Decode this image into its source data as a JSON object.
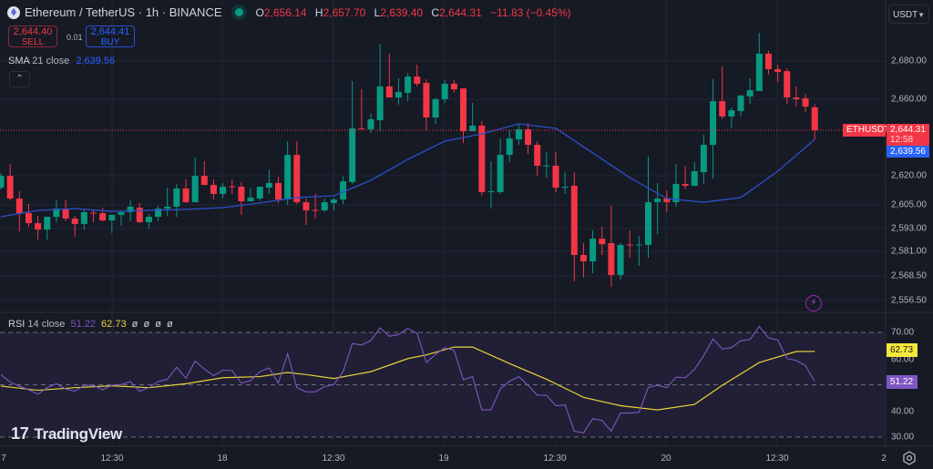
{
  "header": {
    "symbol": "Ethereum / TetherUS · 1h · BINANCE",
    "ohlc": {
      "o_label": "O",
      "o": "2,656.14",
      "h_label": "H",
      "h": "2,657.70",
      "l_label": "L",
      "l": "2,639.40",
      "c_label": "C",
      "c": "2,644.31",
      "change": "−11.83 (−0.45%)"
    }
  },
  "trade": {
    "sell_price": "2,644.40",
    "sell_label": "SELL",
    "spread": "0.01",
    "buy_price": "2,644.41",
    "buy_label": "BUY"
  },
  "sma_legend": {
    "name": "SMA",
    "params": "21 close",
    "value": "2,639.56"
  },
  "collapse_icon": "chevron-up-icon",
  "currency_select": "USDT",
  "price_axis": [
    "2,680.00",
    "2,660.00",
    "2,620.00",
    "2,605.00",
    "2,593.00",
    "2,581.00",
    "2,568.50",
    "2,556.50"
  ],
  "price_tags": {
    "symbol": "ETHUSDT",
    "last": "2,644.31",
    "countdown": "12:58",
    "sma": "2,639.56"
  },
  "rsi_legend": {
    "name": "RSI",
    "params": "14 close",
    "rsi": "51.22",
    "ma": "62.73",
    "extras": [
      "ø",
      "ø",
      "ø",
      "ø"
    ]
  },
  "rsi_axis": [
    "70.00",
    "60.00",
    "40.00",
    "30.00"
  ],
  "rsi_tags": {
    "ma": "62.73",
    "rsi": "51.22"
  },
  "time_axis": [
    "7",
    "12:30",
    "18",
    "12:30",
    "19",
    "12:30",
    "20",
    "12:30",
    "2"
  ],
  "brand": "TradingView",
  "colors": {
    "up": "#089981",
    "down": "#f23645",
    "sma": "#2e4fc8",
    "rsi": "#7e57c2",
    "rsi_ma": "#e8d23b",
    "bg": "#161a25"
  },
  "chart_data": {
    "type": "candlestick",
    "symbol": "ETHUSDT",
    "interval": "1h",
    "ohlc_fields": [
      "open",
      "high",
      "low",
      "close"
    ],
    "candles": [
      [
        2614.7,
        2622.2,
        2613.8,
        2620.8
      ],
      [
        2620.8,
        2626.9,
        2608.2,
        2609.1
      ],
      [
        2609.1,
        2612.9,
        2592.2,
        2601.6
      ],
      [
        2601.6,
        2606.3,
        2594.6,
        2596.4
      ],
      [
        2596.4,
        2600.2,
        2588.0,
        2593.1
      ],
      [
        2593.1,
        2599.7,
        2588.0,
        2599.7
      ],
      [
        2599.7,
        2608.6,
        2596.9,
        2603.9
      ],
      [
        2603.9,
        2608.6,
        2597.4,
        2598.8
      ],
      [
        2598.8,
        2600.2,
        2589.4,
        2596.0
      ],
      [
        2596.0,
        2603.5,
        2593.1,
        2602.1
      ],
      [
        2601.8,
        2603.0,
        2596.9,
        2601.4
      ],
      [
        2601.6,
        2604.4,
        2597.4,
        2597.8
      ],
      [
        2597.8,
        2600.7,
        2591.3,
        2600.7
      ],
      [
        2600.7,
        2602.5,
        2595.0,
        2602.1
      ],
      [
        2602.1,
        2608.2,
        2597.4,
        2604.9
      ],
      [
        2604.4,
        2606.8,
        2596.4,
        2596.9
      ],
      [
        2596.9,
        2601.1,
        2593.6,
        2599.7
      ],
      [
        2599.7,
        2605.3,
        2597.4,
        2603.9
      ],
      [
        2603.9,
        2614.7,
        2600.2,
        2604.9
      ],
      [
        2604.9,
        2616.6,
        2599.7,
        2614.3
      ],
      [
        2614.3,
        2619.0,
        2606.8,
        2607.2
      ],
      [
        2607.2,
        2630.2,
        2607.2,
        2620.8
      ],
      [
        2620.8,
        2628.4,
        2616.1,
        2616.1
      ],
      [
        2616.1,
        2619.0,
        2608.6,
        2611.5
      ],
      [
        2611.5,
        2617.1,
        2609.1,
        2615.2
      ],
      [
        2615.4,
        2619.0,
        2611.5,
        2615.0
      ],
      [
        2615.2,
        2617.6,
        2600.7,
        2607.7
      ],
      [
        2607.7,
        2614.7,
        2607.7,
        2609.6
      ],
      [
        2609.1,
        2615.2,
        2608.0,
        2615.2
      ],
      [
        2614.7,
        2624.1,
        2611.5,
        2617.1
      ],
      [
        2617.1,
        2620.4,
        2606.8,
        2608.6
      ],
      [
        2608.6,
        2638.7,
        2605.8,
        2631.6
      ],
      [
        2631.6,
        2638.7,
        2606.3,
        2607.2
      ],
      [
        2607.2,
        2609.1,
        2595.5,
        2603.0
      ],
      [
        2603.2,
        2611.5,
        2598.8,
        2603.0
      ],
      [
        2603.0,
        2609.1,
        2602.1,
        2607.2
      ],
      [
        2606.8,
        2609.6,
        2603.0,
        2608.6
      ],
      [
        2608.6,
        2620.4,
        2606.3,
        2618.0
      ],
      [
        2617.6,
        2669.7,
        2616.6,
        2645.3
      ],
      [
        2645.3,
        2665.4,
        2644.8,
        2644.8
      ],
      [
        2644.8,
        2652.8,
        2642.9,
        2650.0
      ],
      [
        2649.5,
        2688.9,
        2643.8,
        2666.9
      ],
      [
        2666.9,
        2683.8,
        2661.2,
        2661.2
      ],
      [
        2661.2,
        2671.1,
        2657.5,
        2664.0
      ],
      [
        2663.6,
        2673.9,
        2659.3,
        2672.0
      ],
      [
        2672.0,
        2678.1,
        2666.9,
        2668.3
      ],
      [
        2668.7,
        2670.6,
        2644.3,
        2650.9
      ],
      [
        2650.9,
        2661.2,
        2647.6,
        2660.3
      ],
      [
        2660.3,
        2670.1,
        2658.4,
        2668.3
      ],
      [
        2668.3,
        2670.1,
        2663.6,
        2665.4
      ],
      [
        2665.9,
        2665.9,
        2637.7,
        2643.8
      ],
      [
        2643.8,
        2658.4,
        2643.8,
        2646.7
      ],
      [
        2646.7,
        2649.0,
        2610.5,
        2612.4
      ],
      [
        2612.4,
        2628.4,
        2603.9,
        2612.9
      ],
      [
        2612.4,
        2640.1,
        2611.5,
        2631.6
      ],
      [
        2631.6,
        2644.3,
        2627.9,
        2640.1
      ],
      [
        2639.6,
        2647.6,
        2636.8,
        2644.8
      ],
      [
        2644.8,
        2648.1,
        2632.1,
        2636.8
      ],
      [
        2636.8,
        2638.7,
        2620.8,
        2626.0
      ],
      [
        2625.8,
        2633.0,
        2619.9,
        2626.2
      ],
      [
        2626.0,
        2633.0,
        2612.4,
        2614.7
      ],
      [
        2614.7,
        2622.7,
        2611.5,
        2615.2
      ],
      [
        2615.7,
        2622.7,
        2566.4,
        2580.0
      ],
      [
        2580.0,
        2586.1,
        2568.3,
        2576.7
      ],
      [
        2576.7,
        2592.7,
        2570.6,
        2588.4
      ],
      [
        2588.4,
        2594.6,
        2580.0,
        2585.6
      ],
      [
        2586.1,
        2605.3,
        2563.6,
        2569.7
      ],
      [
        2569.7,
        2586.1,
        2567.3,
        2585.2
      ],
      [
        2585.4,
        2592.7,
        2578.6,
        2585.0
      ],
      [
        2585.0,
        2589.9,
        2574.4,
        2585.4
      ],
      [
        2585.2,
        2630.7,
        2578.6,
        2607.2
      ],
      [
        2607.2,
        2617.1,
        2590.8,
        2609.1
      ],
      [
        2609.1,
        2613.3,
        2602.1,
        2607.2
      ],
      [
        2607.2,
        2626.9,
        2604.9,
        2616.6
      ],
      [
        2616.6,
        2626.0,
        2613.8,
        2615.7
      ],
      [
        2615.7,
        2627.9,
        2615.7,
        2623.2
      ],
      [
        2622.7,
        2642.0,
        2616.6,
        2636.8
      ],
      [
        2636.8,
        2670.6,
        2619.4,
        2659.3
      ],
      [
        2659.3,
        2677.2,
        2650.0,
        2651.4
      ],
      [
        2651.4,
        2656.1,
        2645.3,
        2654.6
      ],
      [
        2654.2,
        2662.6,
        2651.4,
        2662.2
      ],
      [
        2661.7,
        2671.1,
        2657.9,
        2665.0
      ],
      [
        2664.5,
        2694.6,
        2664.5,
        2683.8
      ],
      [
        2683.8,
        2685.2,
        2673.0,
        2675.8
      ],
      [
        2675.8,
        2678.1,
        2669.2,
        2674.4
      ],
      [
        2674.8,
        2676.2,
        2657.9,
        2661.2
      ],
      [
        2661.2,
        2666.9,
        2656.5,
        2660.3
      ],
      [
        2660.8,
        2663.1,
        2653.7,
        2656.5
      ],
      [
        2656.14,
        2657.7,
        2639.4,
        2644.31
      ]
    ],
    "sma21": [
      [
        0,
        2599.7
      ],
      [
        4,
        2603.0
      ],
      [
        8,
        2603.9
      ],
      [
        12,
        2602.5
      ],
      [
        16,
        2603.0
      ],
      [
        20,
        2603.5
      ],
      [
        24,
        2604.4
      ],
      [
        28,
        2606.8
      ],
      [
        32,
        2609.6
      ],
      [
        36,
        2610.5
      ],
      [
        40,
        2618.5
      ],
      [
        44,
        2629.3
      ],
      [
        48,
        2638.7
      ],
      [
        52,
        2642.4
      ],
      [
        56,
        2647.6
      ],
      [
        60,
        2645.3
      ],
      [
        64,
        2632.6
      ],
      [
        68,
        2619.9
      ],
      [
        72,
        2609.1
      ],
      [
        76,
        2607.2
      ],
      [
        80,
        2609.6
      ],
      [
        84,
        2623.2
      ],
      [
        88,
        2639.56
      ]
    ],
    "last_price": 2644.31,
    "price_range": [
      2550,
      2700
    ],
    "rsi": [
      53.9,
      51.0,
      49.5,
      48.1,
      46.4,
      48.9,
      50.4,
      48.4,
      47.5,
      49.8,
      49.8,
      48.1,
      49.8,
      50.1,
      51.2,
      47.5,
      48.9,
      51.2,
      52.1,
      56.7,
      52.5,
      59.0,
      56.0,
      53.5,
      55.6,
      55.4,
      50.6,
      51.6,
      55.0,
      56.4,
      50.6,
      61.9,
      48.9,
      47.3,
      47.3,
      49.3,
      50.1,
      55.0,
      65.7,
      65.2,
      66.9,
      71.7,
      68.5,
      69.2,
      71.5,
      69.7,
      58.5,
      61.6,
      64.2,
      63.1,
      51.9,
      53.1,
      40.4,
      40.4,
      48.4,
      51.3,
      53.1,
      49.8,
      46.0,
      46.0,
      42.0,
      42.3,
      32.3,
      31.6,
      37.1,
      36.3,
      32.3,
      39.2,
      39.2,
      39.5,
      49.0,
      49.8,
      48.9,
      52.9,
      52.7,
      55.9,
      61.1,
      67.5,
      63.7,
      64.2,
      66.8,
      67.3,
      72.3,
      67.9,
      67.1,
      60.0,
      59.3,
      57.3,
      51.22
    ],
    "rsi_ma": [
      [
        0,
        49.5
      ],
      [
        4,
        47.9
      ],
      [
        8,
        48.9
      ],
      [
        12,
        49.6
      ],
      [
        16,
        48.9
      ],
      [
        20,
        50.4
      ],
      [
        24,
        52.7
      ],
      [
        28,
        53.1
      ],
      [
        31,
        54.7
      ],
      [
        33,
        53.9
      ],
      [
        36,
        52.4
      ],
      [
        40,
        55.0
      ],
      [
        44,
        60.0
      ],
      [
        46,
        61.4
      ],
      [
        49,
        64.4
      ],
      [
        51,
        64.4
      ],
      [
        55,
        58.1
      ],
      [
        59,
        52.1
      ],
      [
        63,
        45.2
      ],
      [
        67,
        42.0
      ],
      [
        71,
        40.4
      ],
      [
        75,
        42.5
      ],
      [
        78,
        49.8
      ],
      [
        82,
        58.5
      ],
      [
        86,
        62.7
      ],
      [
        88,
        62.73
      ]
    ],
    "rsi_levels": [
      70,
      50,
      30
    ],
    "rsi_range": [
      30,
      70
    ]
  }
}
